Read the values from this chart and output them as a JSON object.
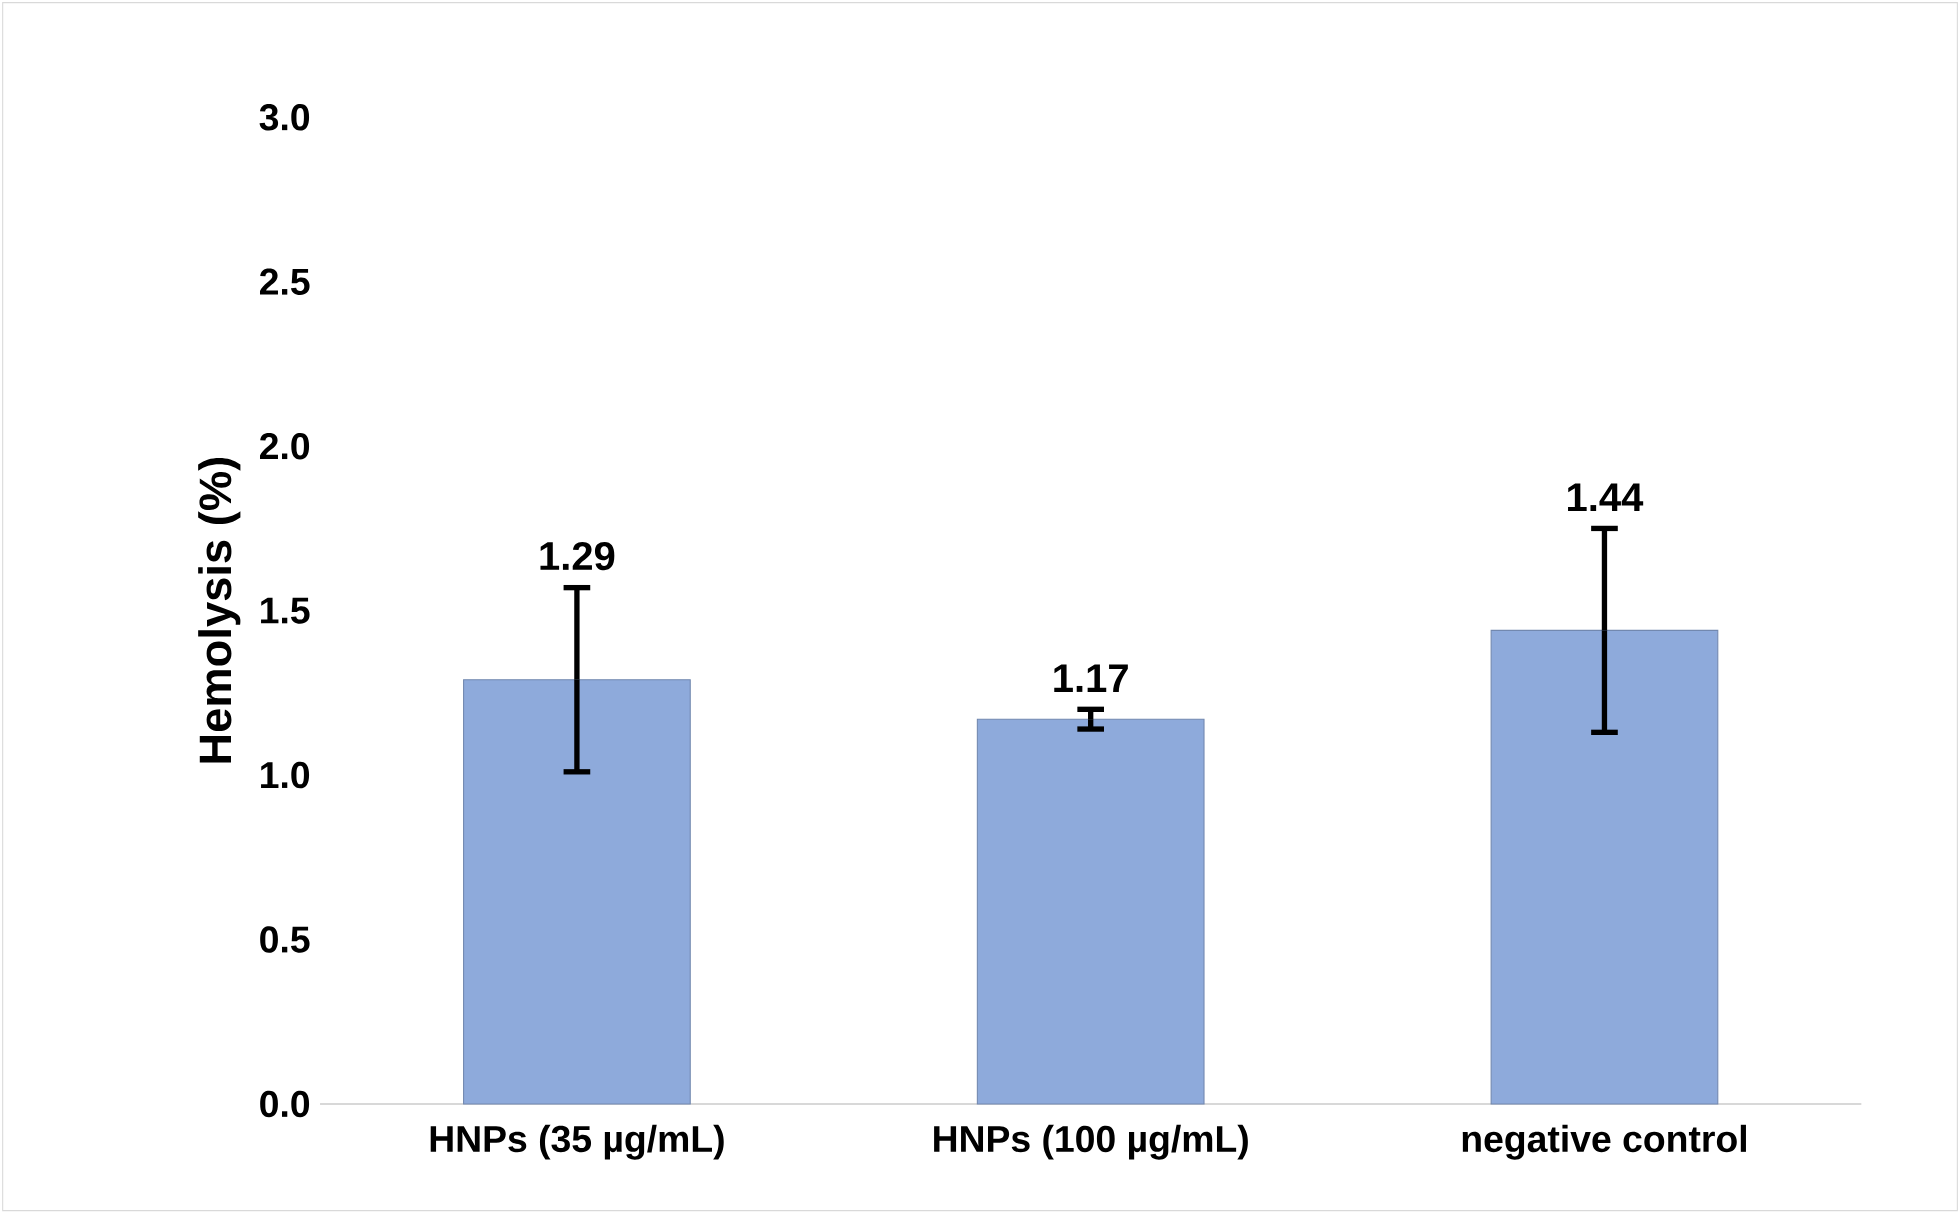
{
  "chart_data": {
    "type": "bar",
    "ylabel": "Hemolysis (%)",
    "categories": [
      "HNPs (35 µg/mL)",
      "HNPs (100 µg/mL)",
      "negative control"
    ],
    "values": [
      1.29,
      1.17,
      1.44
    ],
    "errors": [
      0.28,
      0.03,
      0.31
    ],
    "color": "#8eaadb",
    "data_labels": true,
    "grid": false,
    "ylim": [
      0,
      3
    ],
    "yticks": [
      {
        "value": 0,
        "label": "0.0"
      },
      {
        "value": 0.5,
        "label": "0.5"
      },
      {
        "value": 1,
        "label": "1.0"
      },
      {
        "value": 1.5,
        "label": "1.5"
      },
      {
        "value": 2,
        "label": "2.0"
      },
      {
        "value": 2.5,
        "label": "2.5"
      },
      {
        "value": 3,
        "label": "3.0"
      }
    ]
  }
}
